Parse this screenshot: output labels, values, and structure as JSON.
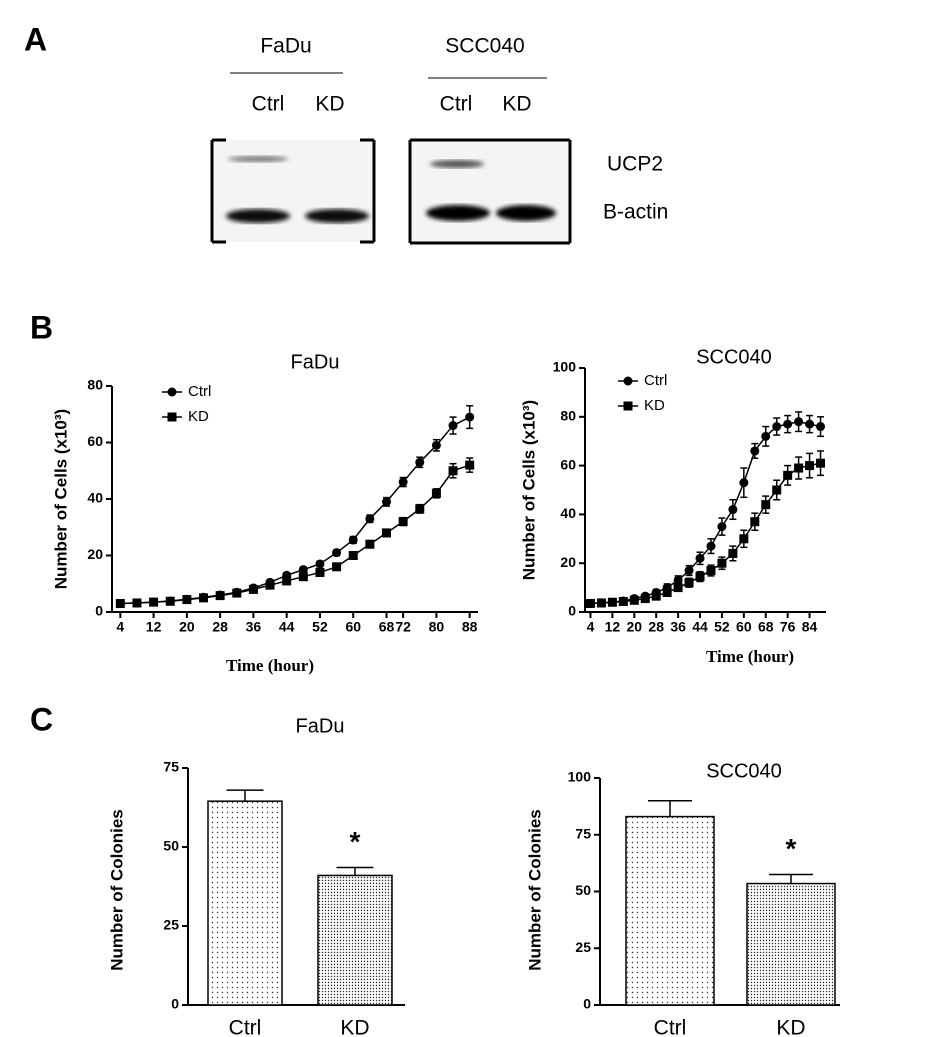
{
  "panels": {
    "a": "A",
    "b": "B",
    "c": "C"
  },
  "blot": {
    "groups": [
      {
        "name": "FaDu",
        "lanes": [
          "Ctrl",
          "KD"
        ]
      },
      {
        "name": "SCC040",
        "lanes": [
          "Ctrl",
          "KD"
        ]
      }
    ],
    "proteins": [
      "UCP2",
      "B-actin"
    ]
  },
  "chart_data": [
    {
      "type": "line",
      "title": "FaDu",
      "xlabel": "Time (hour)",
      "ylabel": "Number of Cells (x10³)",
      "x": [
        4,
        8,
        12,
        16,
        20,
        24,
        28,
        32,
        36,
        40,
        44,
        48,
        52,
        56,
        60,
        64,
        68,
        72,
        76,
        80,
        84,
        88
      ],
      "series": [
        {
          "name": "Ctrl",
          "color": "#000000",
          "marker": "circle",
          "values": [
            3,
            3.2,
            3.5,
            3.9,
            4.5,
            5.2,
            6,
            7,
            8.5,
            10.5,
            13,
            15,
            17,
            21,
            25.5,
            33,
            39,
            46,
            53,
            59,
            66,
            69
          ],
          "errors": [
            0.3,
            0.3,
            0.3,
            0.3,
            0.4,
            0.4,
            0.5,
            0.5,
            0.6,
            0.7,
            0.8,
            0.9,
            1,
            1,
            1.2,
            1.3,
            1.5,
            1.6,
            1.8,
            2,
            3,
            4
          ]
        },
        {
          "name": "KD",
          "color": "#000000",
          "marker": "square",
          "values": [
            3,
            3.2,
            3.5,
            3.8,
            4.4,
            5,
            5.8,
            6.7,
            8,
            9.5,
            11,
            12.5,
            14,
            16,
            20,
            24,
            28,
            32,
            36.5,
            42,
            50,
            52
          ],
          "errors": [
            0.3,
            0.3,
            0.3,
            0.3,
            0.4,
            0.4,
            0.5,
            0.5,
            0.6,
            0.6,
            0.7,
            0.8,
            0.9,
            1,
            1,
            1.2,
            1.3,
            1.4,
            1.5,
            1.6,
            2.5,
            2.5
          ]
        }
      ],
      "xlim": [
        2,
        90
      ],
      "xticks": [
        4,
        12,
        20,
        28,
        36,
        44,
        52,
        60,
        68,
        72,
        80,
        88
      ],
      "ylim": [
        0,
        80
      ],
      "yticks": [
        0,
        20,
        40,
        60,
        80
      ]
    },
    {
      "type": "line",
      "title": "SCC040",
      "xlabel": "Time (hour)",
      "ylabel": "Number of Cells (x10³)",
      "x": [
        4,
        8,
        12,
        16,
        20,
        24,
        28,
        32,
        36,
        40,
        44,
        48,
        52,
        56,
        60,
        64,
        68,
        72,
        76,
        80,
        84,
        88
      ],
      "series": [
        {
          "name": "Ctrl",
          "color": "#000000",
          "marker": "circle",
          "values": [
            3.5,
            3.8,
            4,
            4.5,
            5.5,
            6.5,
            8,
            10,
            13,
            17,
            22,
            27,
            35,
            42,
            53,
            66,
            72,
            76,
            77,
            78,
            77,
            76
          ],
          "errors": [
            0.5,
            0.5,
            0.5,
            0.6,
            1,
            1,
            1.2,
            1.5,
            1.8,
            2,
            2.5,
            3,
            3.5,
            4,
            6,
            3,
            4,
            3.5,
            3.5,
            4,
            3.5,
            4
          ]
        },
        {
          "name": "KD",
          "color": "#000000",
          "marker": "square",
          "values": [
            3.5,
            3.7,
            4,
            4.3,
            4.8,
            5.5,
            6.5,
            8,
            10,
            12,
            14.5,
            17,
            20,
            24,
            30,
            37,
            44,
            50,
            56,
            59,
            60,
            61
          ],
          "errors": [
            0.5,
            0.5,
            0.5,
            0.6,
            0.8,
            1,
            1,
            1.2,
            1.5,
            1.8,
            2,
            2.2,
            2.5,
            3,
            3.5,
            3.5,
            3.5,
            4,
            4,
            4.5,
            5,
            5
          ]
        }
      ],
      "xlim": [
        2,
        90
      ],
      "xticks": [
        4,
        12,
        20,
        28,
        36,
        44,
        52,
        60,
        68,
        76,
        84
      ],
      "ylim": [
        0,
        100
      ],
      "yticks": [
        0,
        20,
        40,
        60,
        80,
        100
      ]
    },
    {
      "type": "bar",
      "title": "FaDu",
      "ylabel": "Number of Colonies",
      "categories": [
        "Ctrl",
        "KD"
      ],
      "values": [
        64.5,
        41
      ],
      "errors": [
        3.5,
        2.5
      ],
      "annotation": "*",
      "ylim": [
        0,
        75
      ],
      "yticks": [
        0,
        25,
        50,
        75
      ]
    },
    {
      "type": "bar",
      "title": "SCC040",
      "ylabel": "Number of Colonies",
      "categories": [
        "Ctrl",
        "KD"
      ],
      "values": [
        83,
        53.5
      ],
      "errors": [
        7,
        4
      ],
      "annotation": "*",
      "ylim": [
        0,
        100
      ],
      "yticks": [
        0,
        25,
        50,
        75,
        100
      ]
    }
  ]
}
